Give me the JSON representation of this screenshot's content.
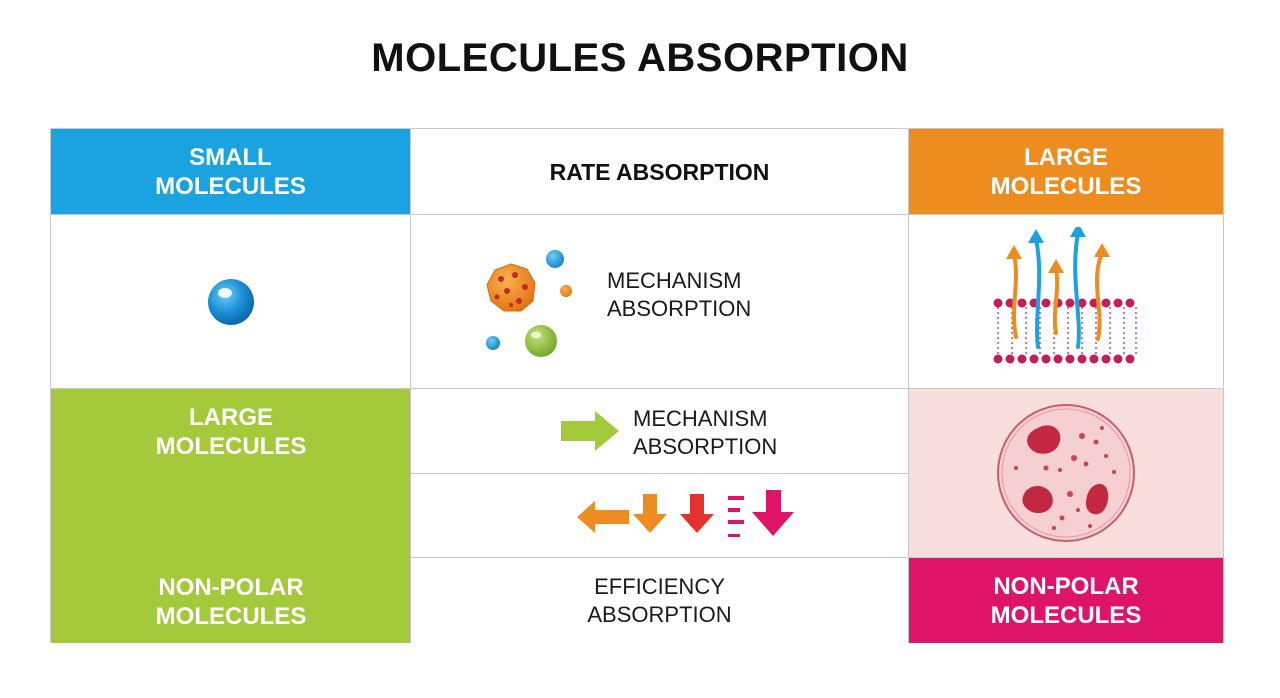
{
  "title": "MOLECULES ABSORPTION",
  "colors": {
    "blue": "#1aa3e0",
    "orange": "#ee8d1f",
    "green": "#a4c93a",
    "pink": "#de1468",
    "light_pink": "#f9dede"
  },
  "left": {
    "small_label": "SMALL\nMOLECULES",
    "large_label": "LARGE\nMOLECULES",
    "nonpolar_label": "NON-POLAR\nMOLECULES"
  },
  "middle": {
    "header": "RATE ABSORPTION",
    "mechanism_1": "MECHANISM\n  ABSORPTION",
    "mechanism_2": "MECHANISM\n  ABSORPTION",
    "efficiency": "EFFICIENCY\nABSORPTION"
  },
  "right": {
    "large_label": "LARGE\nMOLECULES",
    "nonpolar_label": "NON-POLAR\nMOLECULES"
  },
  "icons": {
    "small_molecule": "blue-sphere-icon",
    "molecule_cluster": "molecule-cluster-icon",
    "membrane": "cell-membrane-arrows-icon",
    "arrow_right": "green-arrow-right-icon",
    "arrows_row": "direction-arrows-icon",
    "cell": "cell-icon"
  }
}
